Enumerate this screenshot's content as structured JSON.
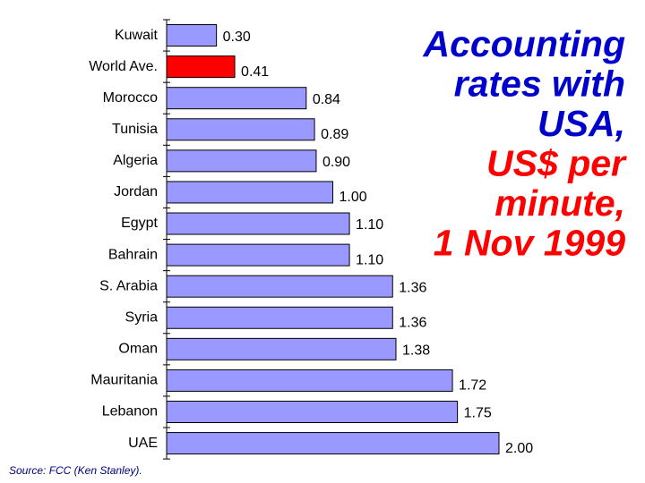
{
  "chart_data": {
    "type": "bar",
    "orientation": "horizontal",
    "title_lines": [
      "Accounting",
      "rates with",
      "USA,",
      "US$ per",
      "minute,",
      "1 Nov 1999"
    ],
    "title_colors": [
      "#0000cc",
      "#0000cc",
      "#0000cc",
      "#ff0000",
      "#ff0000",
      "#ff0000"
    ],
    "source": "Source: FCC (Ken Stanley).",
    "categories": [
      "Kuwait",
      "World Ave.",
      "Morocco",
      "Tunisia",
      "Algeria",
      "Jordan",
      "Egypt",
      "Bahrain",
      "S. Arabia",
      "Syria",
      "Oman",
      "Mauritania",
      "Lebanon",
      "UAE"
    ],
    "values": [
      0.3,
      0.41,
      0.84,
      0.89,
      0.9,
      1.0,
      1.1,
      1.1,
      1.36,
      1.36,
      1.38,
      1.72,
      1.75,
      2.0
    ],
    "value_labels": [
      "0.30",
      "0.41",
      "0.84",
      "0.89",
      "0.90",
      "1.00",
      "1.10",
      "1.10",
      "1.36",
      "1.36",
      "1.38",
      "1.72",
      "1.75",
      "2.00"
    ],
    "colors": [
      "#9999ff",
      "#ff0000",
      "#9999ff",
      "#9999ff",
      "#9999ff",
      "#9999ff",
      "#9999ff",
      "#9999ff",
      "#9999ff",
      "#9999ff",
      "#9999ff",
      "#9999ff",
      "#9999ff",
      "#9999ff"
    ]
  }
}
